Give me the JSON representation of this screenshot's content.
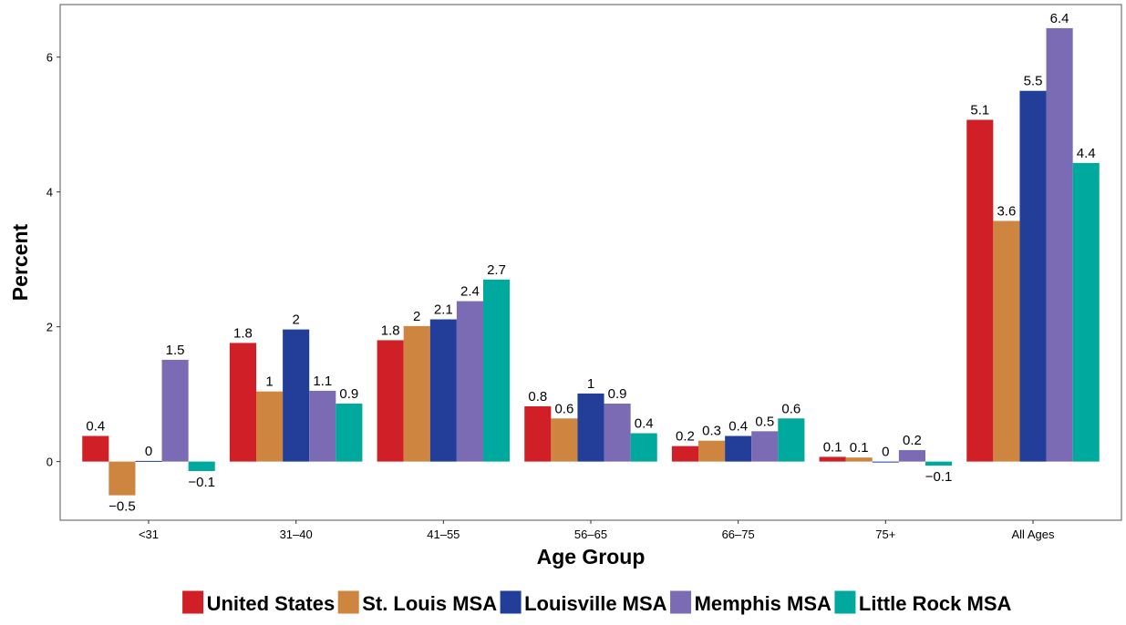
{
  "chart_data": {
    "type": "bar",
    "x_label": "Age Group",
    "y_label": "Percent",
    "categories": [
      "<31",
      "31–40",
      "41–55",
      "56–65",
      "66–75",
      "75+",
      "All Ages"
    ],
    "series": [
      {
        "name": "United States",
        "color": "#d01f26",
        "values": [
          0.38,
          1.76,
          1.8,
          0.82,
          0.23,
          0.07,
          5.07
        ],
        "value_labels": [
          "0.4",
          "1.8",
          "1.8",
          "0.8",
          "0.2",
          "0.1",
          "5.1"
        ]
      },
      {
        "name": "St. Louis MSA",
        "color": "#cd853f",
        "values": [
          -0.5,
          1.04,
          2.01,
          0.64,
          0.31,
          0.06,
          3.57
        ],
        "value_labels": [
          "−0.5",
          "1",
          "2",
          "0.6",
          "0.3",
          "0.1",
          "3.6"
        ]
      },
      {
        "name": "Louisville MSA",
        "color": "#233e99",
        "values": [
          0.01,
          1.96,
          2.11,
          1.01,
          0.38,
          0.0,
          5.5
        ],
        "value_labels": [
          "0",
          "2",
          "2.1",
          "1",
          "0.4",
          "0",
          "5.5"
        ]
      },
      {
        "name": "Memphis MSA",
        "color": "#7b6bb5",
        "values": [
          1.51,
          1.05,
          2.38,
          0.86,
          0.45,
          0.17,
          6.43
        ],
        "value_labels": [
          "1.5",
          "1.1",
          "2.4",
          "0.9",
          "0.5",
          "0.2",
          "6.4"
        ]
      },
      {
        "name": "Little Rock MSA",
        "color": "#00a99d",
        "values": [
          -0.14,
          0.86,
          2.7,
          0.42,
          0.64,
          -0.06,
          4.43
        ],
        "value_labels": [
          "−0.1",
          "0.9",
          "2.7",
          "0.4",
          "0.6",
          "−0.1",
          "4.4"
        ]
      }
    ],
    "ylim": [
      -0.87,
      6.78
    ],
    "yticks": [
      0,
      2,
      4,
      6
    ],
    "grid": false,
    "legend": "bottom"
  }
}
